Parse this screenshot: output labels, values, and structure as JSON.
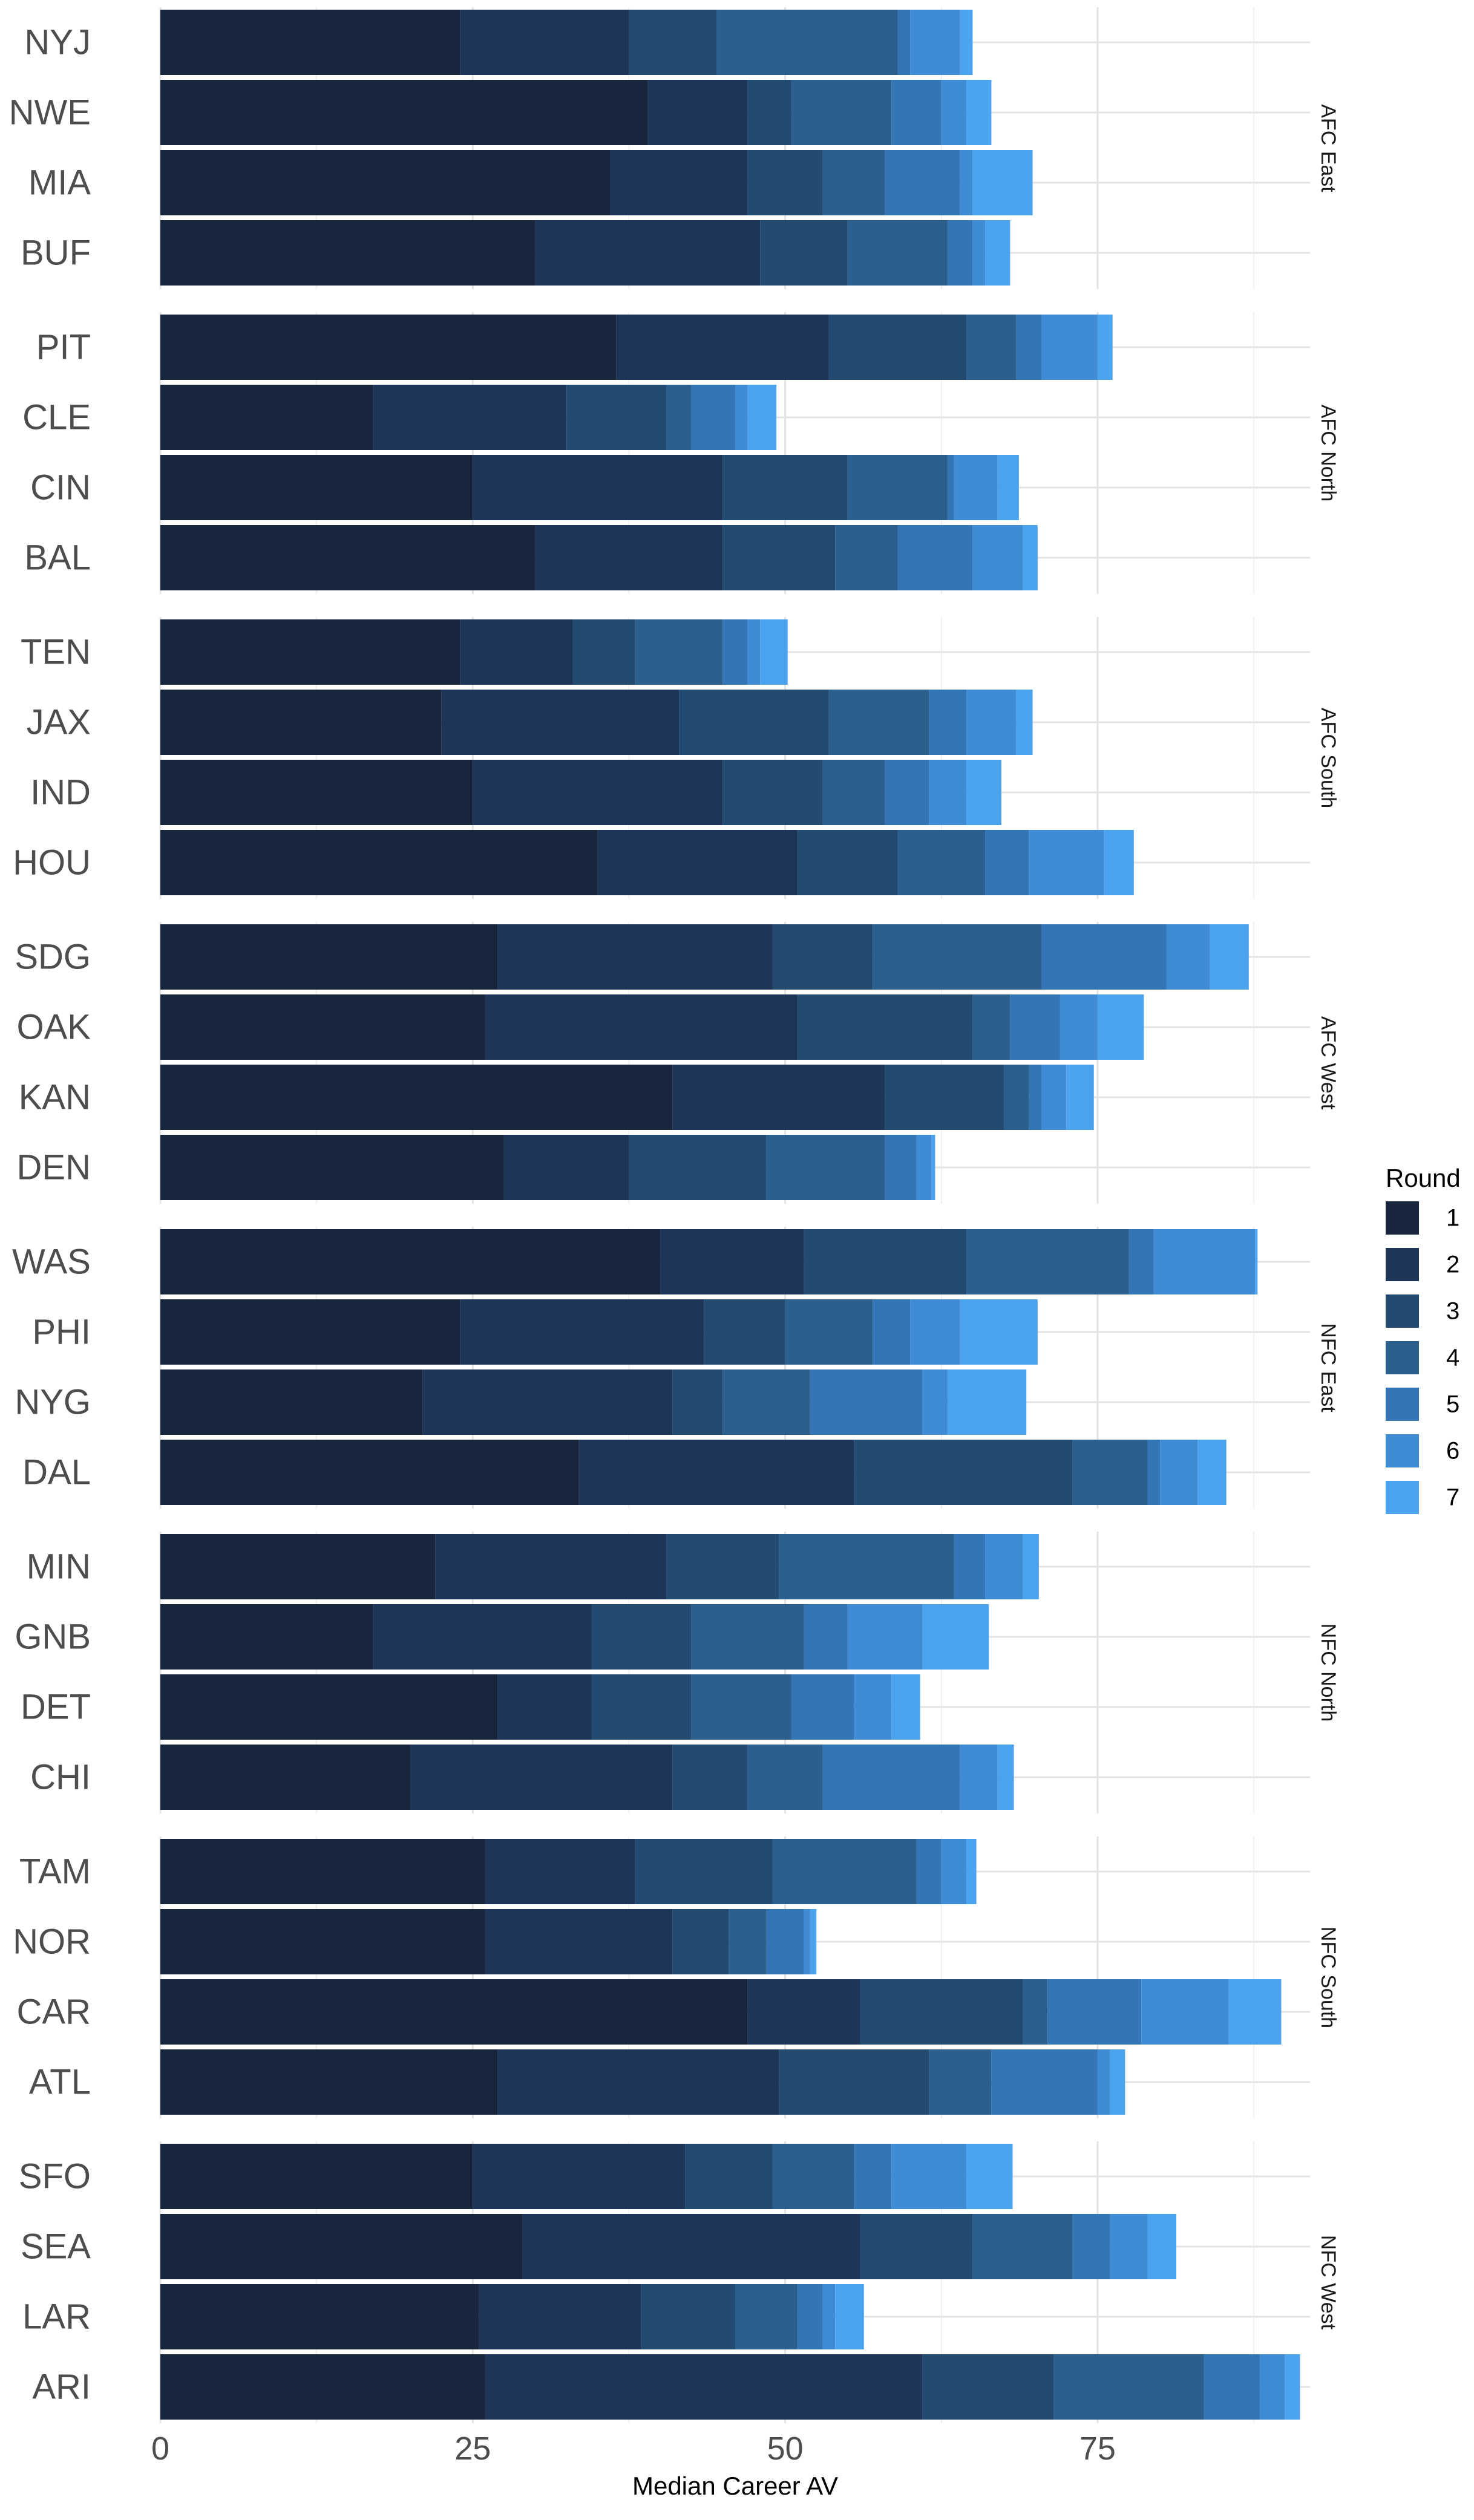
{
  "chart_data": {
    "type": "bar",
    "orientation": "horizontal",
    "stacked": true,
    "title": "",
    "xlabel": "Median Career AV",
    "ylabel": "",
    "xlim": [
      0,
      92
    ],
    "x_ticks": [
      0,
      25,
      50,
      75
    ],
    "grid": true,
    "legend": {
      "title": "Round",
      "position": "right",
      "entries": [
        "1",
        "2",
        "3",
        "4",
        "5",
        "6",
        "7"
      ]
    },
    "colors": [
      "#17253d",
      "#1d3557",
      "#234b72",
      "#2a5f8e",
      "#3375b5",
      "#3f8bd4",
      "#4ba3ef"
    ],
    "facets": [
      {
        "name": "AFC East",
        "teams": [
          {
            "team": "NYJ",
            "values": [
              24,
              13.5,
              7,
              14.5,
              1,
              4,
              1
            ]
          },
          {
            "team": "NWE",
            "values": [
              39,
              8,
              3.5,
              8,
              4,
              2,
              2
            ]
          },
          {
            "team": "MIA",
            "values": [
              36,
              11,
              6,
              5,
              6,
              1,
              4.8
            ]
          },
          {
            "team": "BUF",
            "values": [
              30,
              18,
              7,
              8,
              2,
              1,
              2
            ]
          }
        ]
      },
      {
        "name": "AFC North",
        "teams": [
          {
            "team": "PIT",
            "values": [
              36.5,
              17,
              11,
              4,
              2,
              4.5,
              1.2
            ]
          },
          {
            "team": "CLE",
            "values": [
              17,
              15.5,
              8,
              2,
              3.5,
              1,
              2.3
            ]
          },
          {
            "team": "CIN",
            "values": [
              25,
              20,
              10,
              8,
              0.5,
              3.5,
              1.7
            ]
          },
          {
            "team": "BAL",
            "values": [
              30,
              15,
              9,
              5,
              6,
              4,
              1.2
            ]
          }
        ]
      },
      {
        "name": "AFC South",
        "teams": [
          {
            "team": "TEN",
            "values": [
              24,
              9,
              5,
              7,
              2,
              1,
              2.2
            ]
          },
          {
            "team": "JAX",
            "values": [
              22.5,
              19,
              12,
              8,
              3,
              4,
              1.3
            ]
          },
          {
            "team": "IND",
            "values": [
              25,
              20,
              8,
              5,
              3.5,
              3,
              2.8
            ]
          },
          {
            "team": "HOU",
            "values": [
              35,
              16,
              8,
              7,
              3.5,
              6,
              2.4
            ]
          }
        ]
      },
      {
        "name": "AFC West",
        "teams": [
          {
            "team": "SDG",
            "values": [
              27,
              22,
              8,
              13.5,
              10,
              3.5,
              3.1
            ]
          },
          {
            "team": "OAK",
            "values": [
              26,
              25,
              14,
              3,
              4,
              3,
              3.7
            ]
          },
          {
            "team": "KAN",
            "values": [
              41,
              17,
              9.5,
              2,
              1,
              2,
              2.2
            ]
          },
          {
            "team": "DEN",
            "values": [
              27.5,
              10,
              11,
              9.5,
              2.5,
              1.2,
              0.3
            ]
          }
        ]
      },
      {
        "name": "NFC East",
        "teams": [
          {
            "team": "WAS",
            "values": [
              40,
              11.5,
              13,
              13,
              2,
              8.1,
              0.2
            ]
          },
          {
            "team": "PHI",
            "values": [
              24,
              19.5,
              6.5,
              7,
              3,
              4,
              6.2
            ]
          },
          {
            "team": "NYG",
            "values": [
              21,
              20,
              4,
              7,
              9,
              2,
              6.3
            ]
          },
          {
            "team": "DAL",
            "values": [
              33.5,
              22,
              17.5,
              6,
              1,
              3,
              2.3
            ]
          }
        ]
      },
      {
        "name": "NFC North",
        "teams": [
          {
            "team": "MIN",
            "values": [
              22,
              18.5,
              9,
              14,
              2.5,
              3,
              1.3
            ]
          },
          {
            "team": "GNB",
            "values": [
              17,
              17.5,
              8,
              9,
              3.5,
              6,
              5.3
            ]
          },
          {
            "team": "DET",
            "values": [
              27,
              7.5,
              8,
              8,
              5,
              3,
              2.3
            ]
          },
          {
            "team": "CHI",
            "values": [
              20,
              21,
              6,
              6,
              11,
              3,
              1.3
            ]
          }
        ]
      },
      {
        "name": "NFC South",
        "teams": [
          {
            "team": "TAM",
            "values": [
              26,
              12,
              11,
              11.5,
              2,
              2,
              0.8
            ]
          },
          {
            "team": "NOR",
            "values": [
              26,
              15,
              4.5,
              3,
              3,
              0.5,
              0.5
            ]
          },
          {
            "team": "CAR",
            "values": [
              47,
              9,
              13,
              2,
              7.5,
              7,
              4.2
            ]
          },
          {
            "team": "ATL",
            "values": [
              27,
              22.5,
              12,
              5,
              8.5,
              1,
              1.2
            ]
          }
        ]
      },
      {
        "name": "NFC West",
        "teams": [
          {
            "team": "SFO",
            "values": [
              25,
              17,
              7,
              6.5,
              3,
              6,
              3.7
            ]
          },
          {
            "team": "SEA",
            "values": [
              29,
              27,
              9,
              8,
              3,
              3,
              2.3
            ]
          },
          {
            "team": "LAR",
            "values": [
              25.5,
              13,
              7.5,
              5,
              2,
              1,
              2.3
            ]
          },
          {
            "team": "ARI",
            "values": [
              26,
              35,
              10.5,
              12,
              4.5,
              2,
              1.2
            ]
          }
        ]
      }
    ]
  }
}
